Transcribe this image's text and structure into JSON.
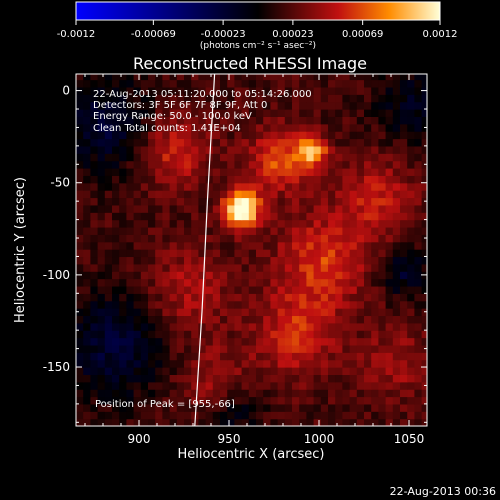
{
  "chart_data": {
    "type": "heatmap",
    "title": "Reconstructed RHESSI Image",
    "xlabel": "Heliocentric X (arcsec)",
    "ylabel": "Heliocentric Y (arcsec)",
    "xlim": [
      865,
      1060
    ],
    "ylim": [
      -182,
      9
    ],
    "x_ticks": [
      900,
      950,
      1000,
      1050
    ],
    "y_ticks": [
      0,
      -50,
      -100,
      -150
    ],
    "colorbar": {
      "range": [
        -0.0012,
        0.0012
      ],
      "ticks": [
        -0.0012,
        -0.00069,
        -0.00023,
        0.00023,
        0.00069,
        0.0012
      ],
      "tick_labels": [
        "-0.0012",
        "-0.00069",
        "-0.00023",
        "0.00023",
        "0.00069",
        "0.0012"
      ],
      "unit": "(photons cm⁻² s⁻¹ asec⁻²)"
    },
    "annotations": [
      "22-Aug-2013 05:11:20.000 to 05:14:26.000",
      "Detectors: 3F 5F 6F 7F 8F 9F, Att 0",
      "Energy Range: 50.0 - 100.0 keV",
      "Clean    Total counts: 1.41E+04"
    ],
    "peak_label": "Position of Peak = [955,-66]",
    "peak": {
      "x": 955,
      "y": -66,
      "value": 0.0012
    },
    "features": [
      {
        "x": 955,
        "y": -66,
        "value": 0.0012,
        "sigma": 7
      },
      {
        "x": 994,
        "y": -35,
        "value": 0.00075,
        "sigma": 6
      },
      {
        "x": 975,
        "y": -40,
        "value": 0.0005,
        "sigma": 12
      },
      {
        "x": 1000,
        "y": -95,
        "value": 0.00045,
        "sigma": 18
      },
      {
        "x": 985,
        "y": -135,
        "value": 0.0004,
        "sigma": 16
      },
      {
        "x": 918,
        "y": -35,
        "value": 0.0004,
        "sigma": 14
      },
      {
        "x": 925,
        "y": -110,
        "value": 0.0003,
        "sigma": 16
      },
      {
        "x": 1030,
        "y": -60,
        "value": 0.00035,
        "sigma": 15
      },
      {
        "x": 940,
        "y": -160,
        "value": 0.0003,
        "sigma": 14
      },
      {
        "x": 1040,
        "y": -150,
        "value": 0.00025,
        "sigma": 14
      },
      {
        "x": 880,
        "y": -20,
        "value": -0.0004,
        "sigma": 18
      },
      {
        "x": 885,
        "y": -140,
        "value": -0.0004,
        "sigma": 20
      },
      {
        "x": 1050,
        "y": -10,
        "value": -0.0003,
        "sigma": 14
      },
      {
        "x": 1045,
        "y": -100,
        "value": -0.00035,
        "sigma": 10
      },
      {
        "x": 950,
        "y": -175,
        "value": -0.0003,
        "sigma": 12
      }
    ],
    "limb_curve": {
      "x": [
        942,
        938,
        935,
        931
      ],
      "y": [
        9,
        -60,
        -120,
        -182
      ]
    }
  },
  "footer": {
    "date": "22-Aug-2013 00:36"
  }
}
